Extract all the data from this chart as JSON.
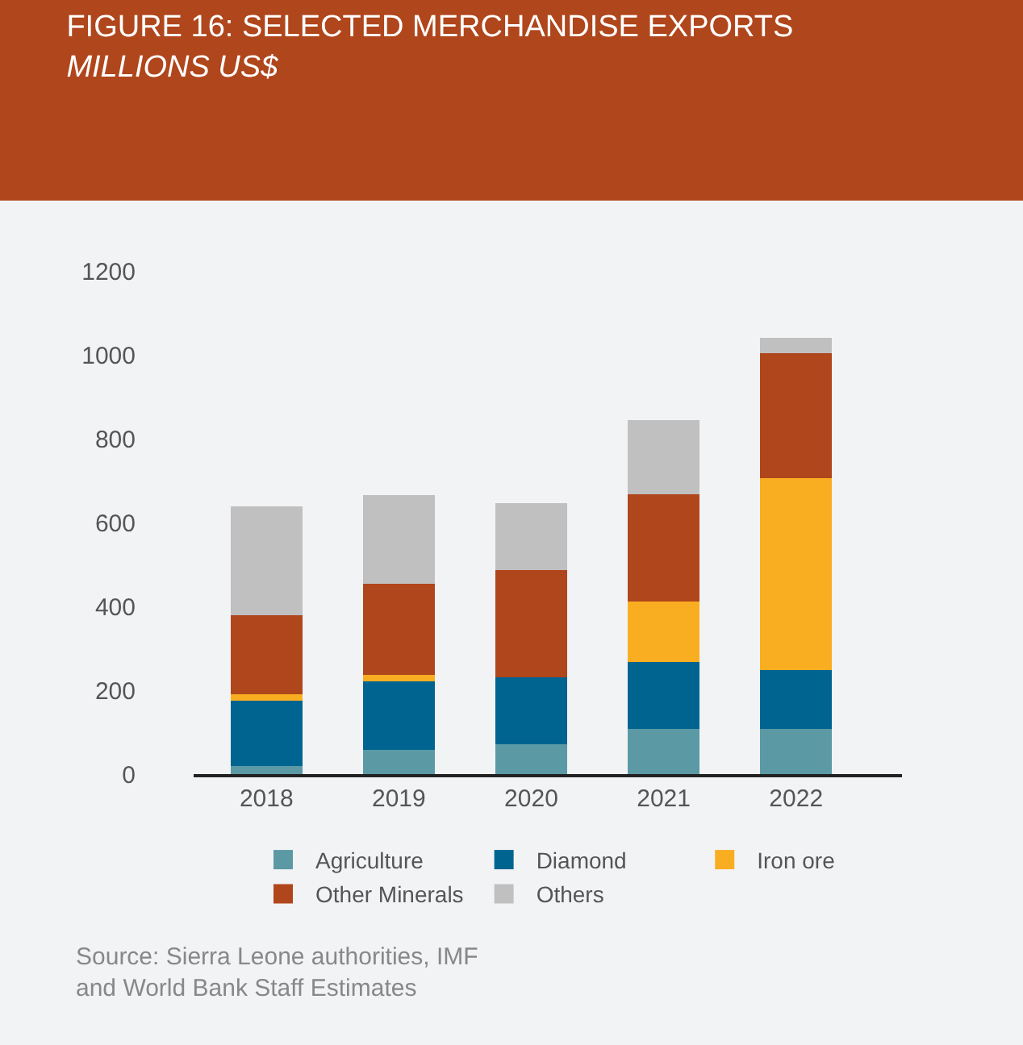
{
  "chart_data": {
    "type": "bar",
    "title": "FIGURE 16: SELECTED MERCHANDISE EXPORTS",
    "subtitle": "MILLIONS US$",
    "categories": [
      "2018",
      "2019",
      "2020",
      "2021",
      "2022"
    ],
    "stacked": true,
    "series": [
      {
        "name": "Agriculture",
        "color": "#5b9aa5",
        "values": [
          20,
          58,
          71,
          107,
          107
        ]
      },
      {
        "name": "Diamond",
        "color": "#006491",
        "values": [
          155,
          164,
          160,
          160,
          142
        ]
      },
      {
        "name": "Iron ore",
        "color": "#f9ae21",
        "values": [
          16,
          15,
          0,
          144,
          456
        ]
      },
      {
        "name": "Other Minerals",
        "color": "#b0461c",
        "values": [
          187,
          217,
          255,
          257,
          299
        ]
      },
      {
        "name": "Others",
        "color": "#c0c0c0",
        "values": [
          260,
          212,
          160,
          176,
          36
        ]
      }
    ],
    "ylim": [
      0,
      1200
    ],
    "yticks": [
      0,
      200,
      400,
      600,
      800,
      1000,
      1200
    ],
    "grid": false,
    "legend": "bottom",
    "annotations": [
      "Source: Sierra Leone authorities, IMF\nand World Bank Staff Estimates"
    ]
  }
}
